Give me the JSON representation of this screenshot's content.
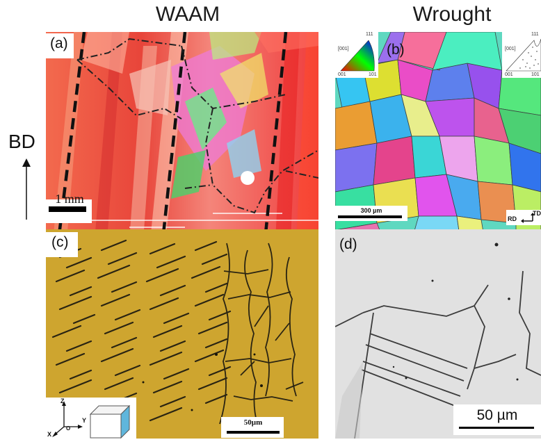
{
  "columns": {
    "left_title": "WAAM",
    "right_title": "Wrought"
  },
  "build_direction": {
    "label": "BD"
  },
  "panels": {
    "a": {
      "tag": "(a)",
      "scale_bar": "1 mm",
      "content": "EBSD orientation map, columnar grains"
    },
    "b": {
      "tag": "(b)",
      "scale_bar": "300 µm",
      "content": "EBSD orientation map, equiaxed grains",
      "ipf_left": {
        "top": "111",
        "left": "001",
        "right": "101",
        "axis": "[001]"
      },
      "ipf_right": {
        "top": "111",
        "left": "001",
        "right": "101",
        "axis": "[001]"
      },
      "axes": {
        "td": "TD",
        "rd": "RD"
      }
    },
    "c": {
      "tag": "(c)",
      "scale_bar": "50µm",
      "content": "optical micrograph, dendritic structure",
      "axes": {
        "z": "Z",
        "y": "Y",
        "o": "O",
        "x": "X"
      }
    },
    "d": {
      "tag": "(d)",
      "scale_bar": "50 µm",
      "content": "optical micrograph, annealing twins"
    }
  },
  "colors": {
    "waam_base": "#f0503a",
    "micro_c_bg": "#c9a02a",
    "micro_d_bg": "#dcdcdc"
  }
}
